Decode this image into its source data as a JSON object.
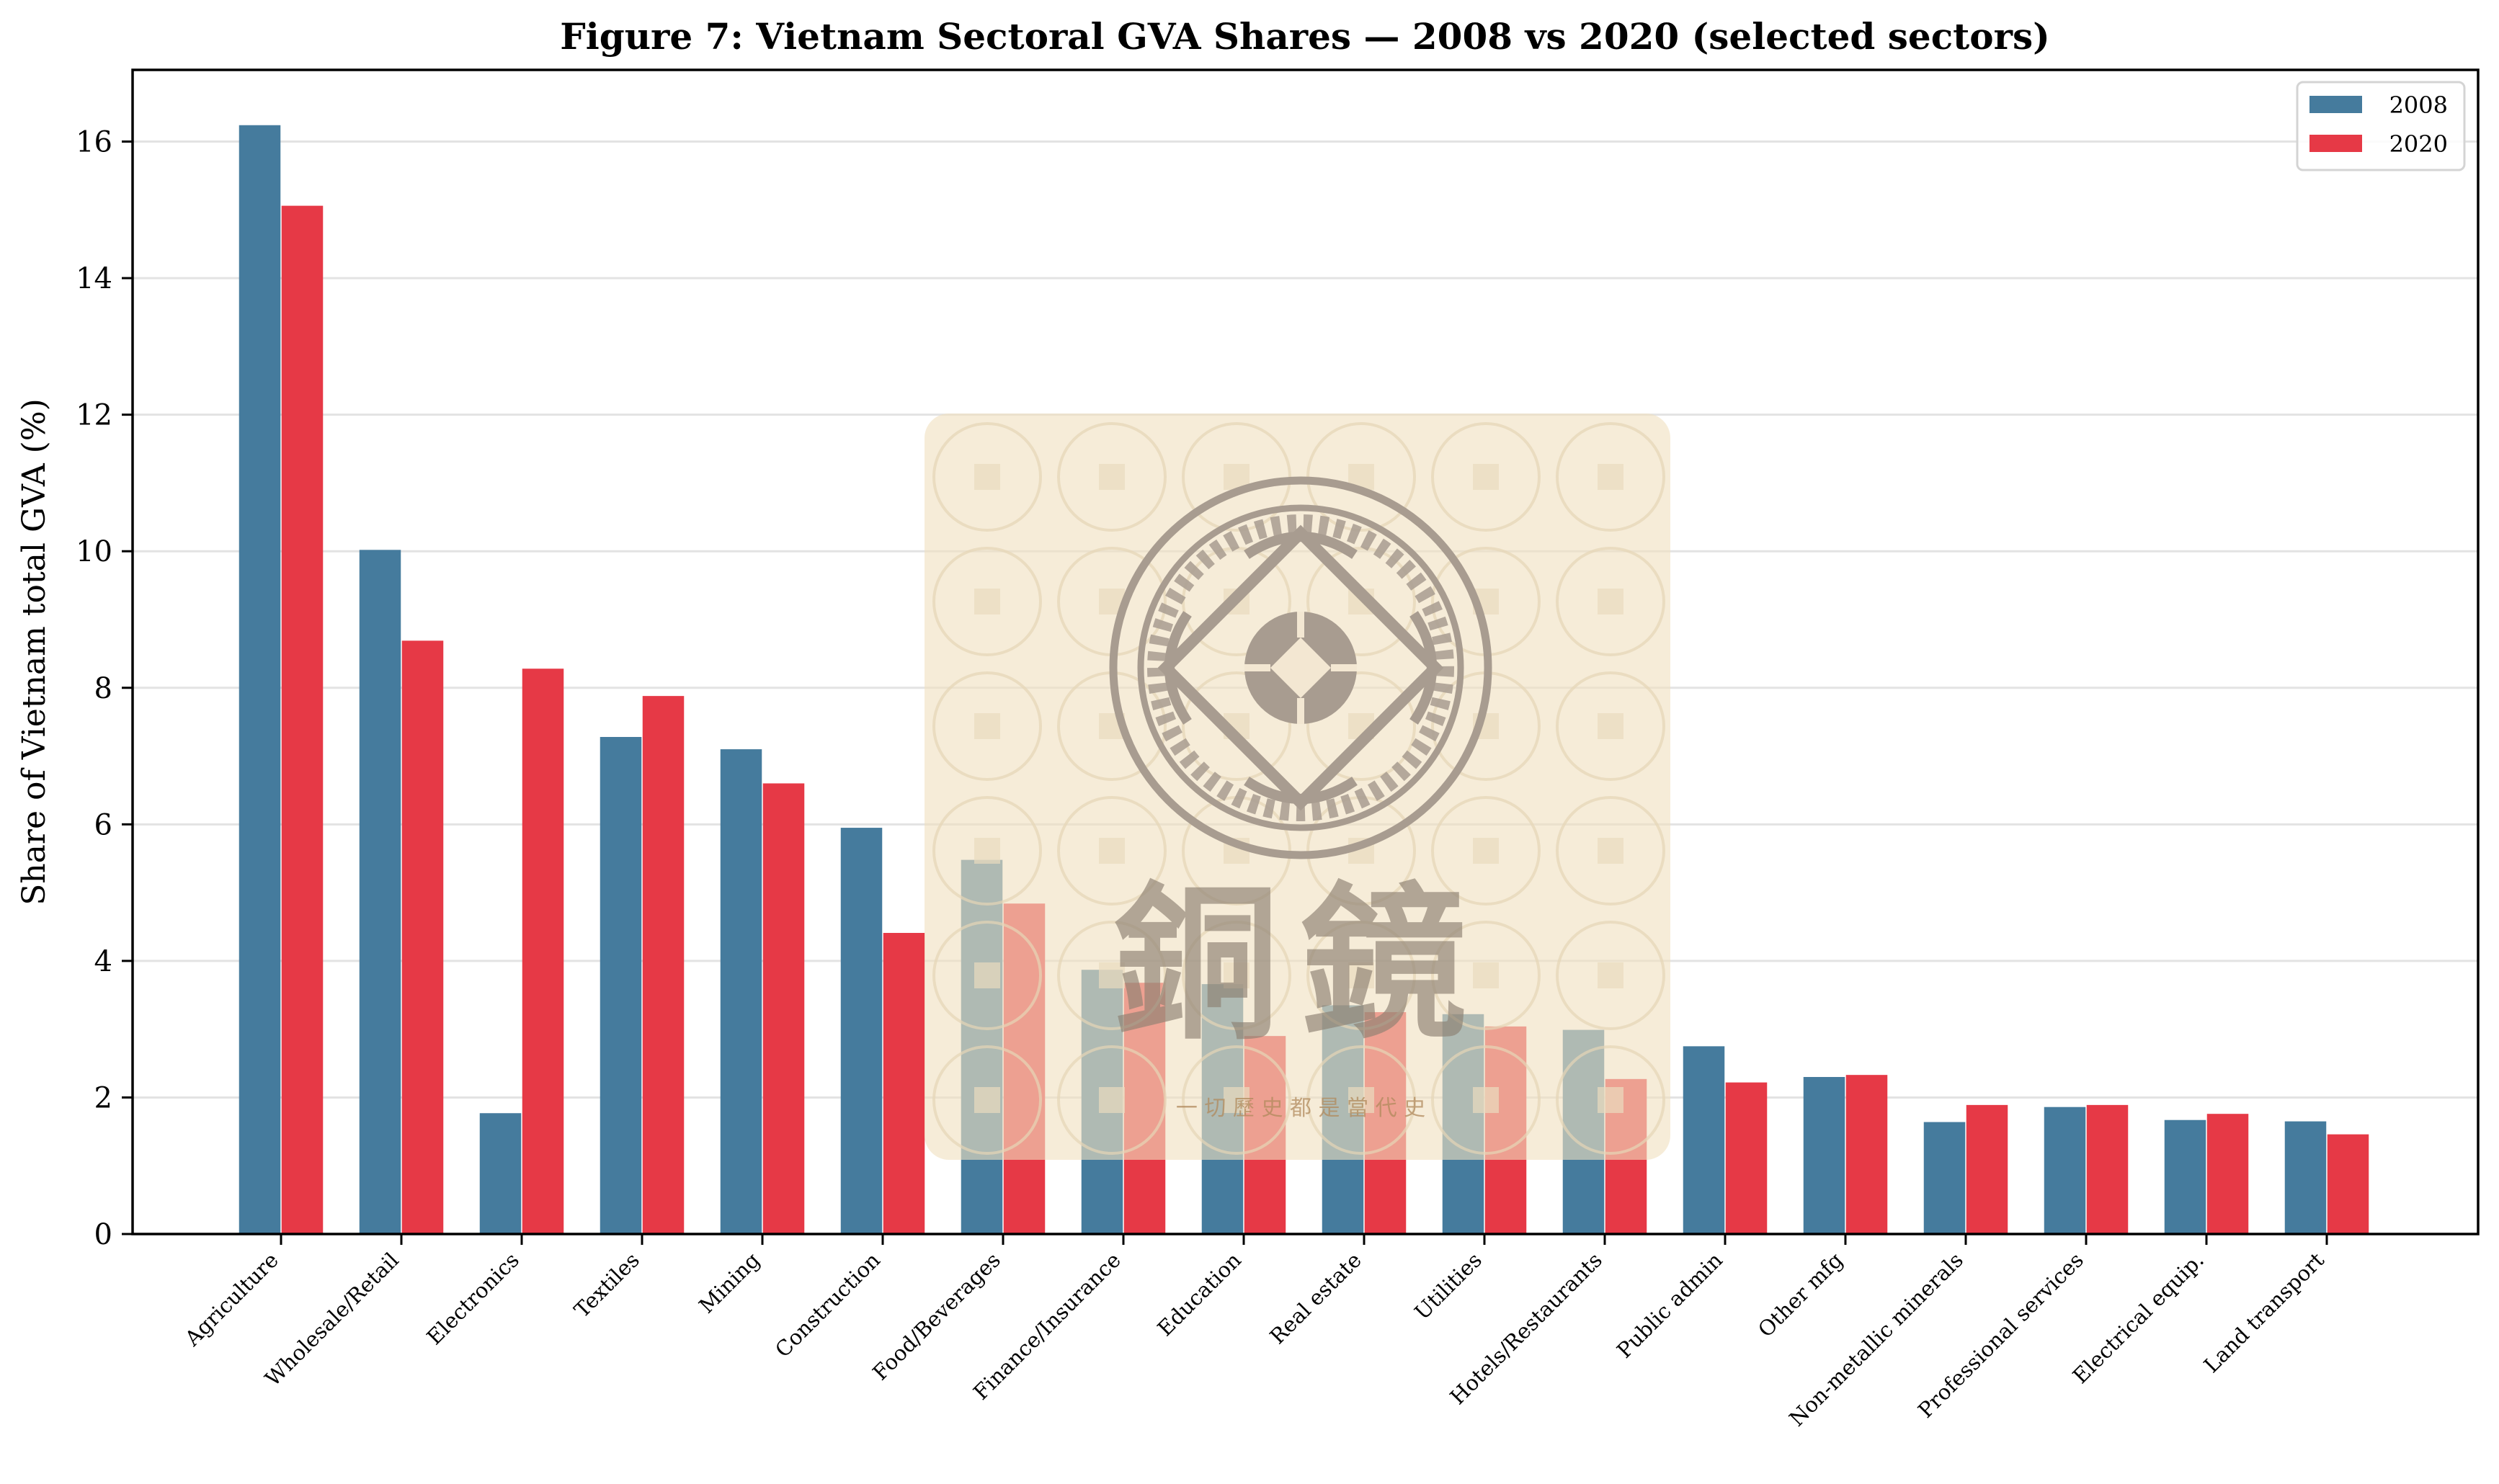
{
  "chart_data": {
    "type": "bar",
    "title": "Figure 7: Vietnam Sectoral GVA Shares — 2008 vs 2020 (selected sectors)",
    "xlabel": "",
    "ylabel": "Share of Vietnam total GVA (%)",
    "ylim": [
      0,
      17.05
    ],
    "yticks": [
      0,
      2,
      4,
      6,
      8,
      10,
      12,
      14,
      16
    ],
    "grid": "y",
    "legend_position": "top-right",
    "categories": [
      "Agriculture",
      "Wholesale/Retail",
      "Electronics",
      "Textiles",
      "Mining",
      "Construction",
      "Food/Beverages",
      "Finance/Insurance",
      "Education",
      "Real estate",
      "Utilities",
      "Hotels/Restaurants",
      "Public admin",
      "Other mfg",
      "Non-metallic minerals",
      "Professional services",
      "Electrical equip.",
      "Land transport"
    ],
    "series": [
      {
        "name": "2008",
        "color": "#457b9d",
        "values": [
          16.24,
          10.02,
          1.77,
          7.28,
          7.1,
          5.95,
          5.48,
          3.87,
          3.66,
          3.35,
          3.22,
          2.99,
          2.75,
          2.3,
          1.64,
          1.86,
          1.67,
          1.65
        ]
      },
      {
        "name": "2020",
        "color": "#e63946",
        "values": [
          15.06,
          8.69,
          8.28,
          7.88,
          6.6,
          4.41,
          4.84,
          3.68,
          2.9,
          3.25,
          3.04,
          2.27,
          2.22,
          2.33,
          1.89,
          1.89,
          1.76,
          1.46
        ]
      }
    ]
  },
  "watermark": {
    "characters": "銅鏡",
    "motto": "一 切 歷 史 都 是 當 代 史"
  }
}
